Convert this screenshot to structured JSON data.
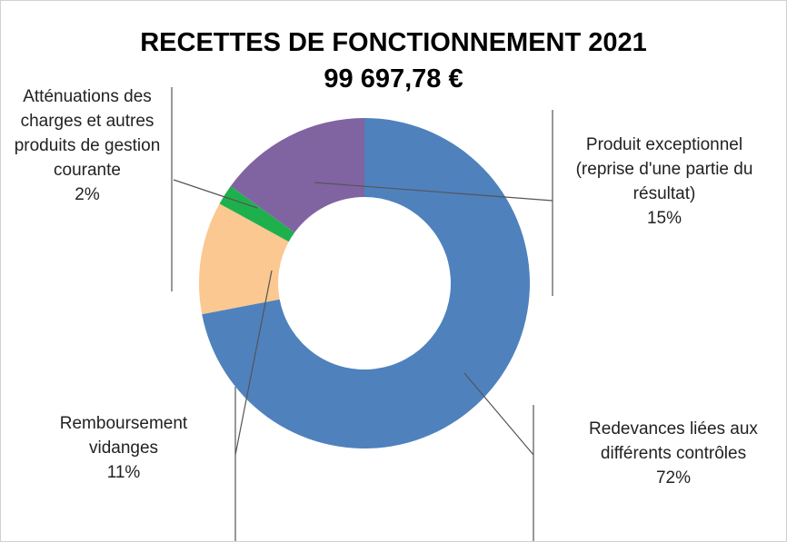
{
  "chart_data": {
    "type": "donut",
    "title": "RECETTES DE FONCTIONNEMENT 2021",
    "subtitle": "99 697,78 €",
    "categories": [
      "Redevances liées aux différents contrôles",
      "Remboursement vidanges",
      "Atténuations des charges et autres produits de gestion courante",
      "Produit exceptionnel (reprise d'une partie du résultat)"
    ],
    "values": [
      72,
      11,
      2,
      15
    ],
    "value_labels": [
      "72%",
      "11%",
      "2%",
      "15%"
    ],
    "colors": [
      "#4f81bd",
      "#fac890",
      "#1fb04e",
      "#8064a2"
    ]
  }
}
